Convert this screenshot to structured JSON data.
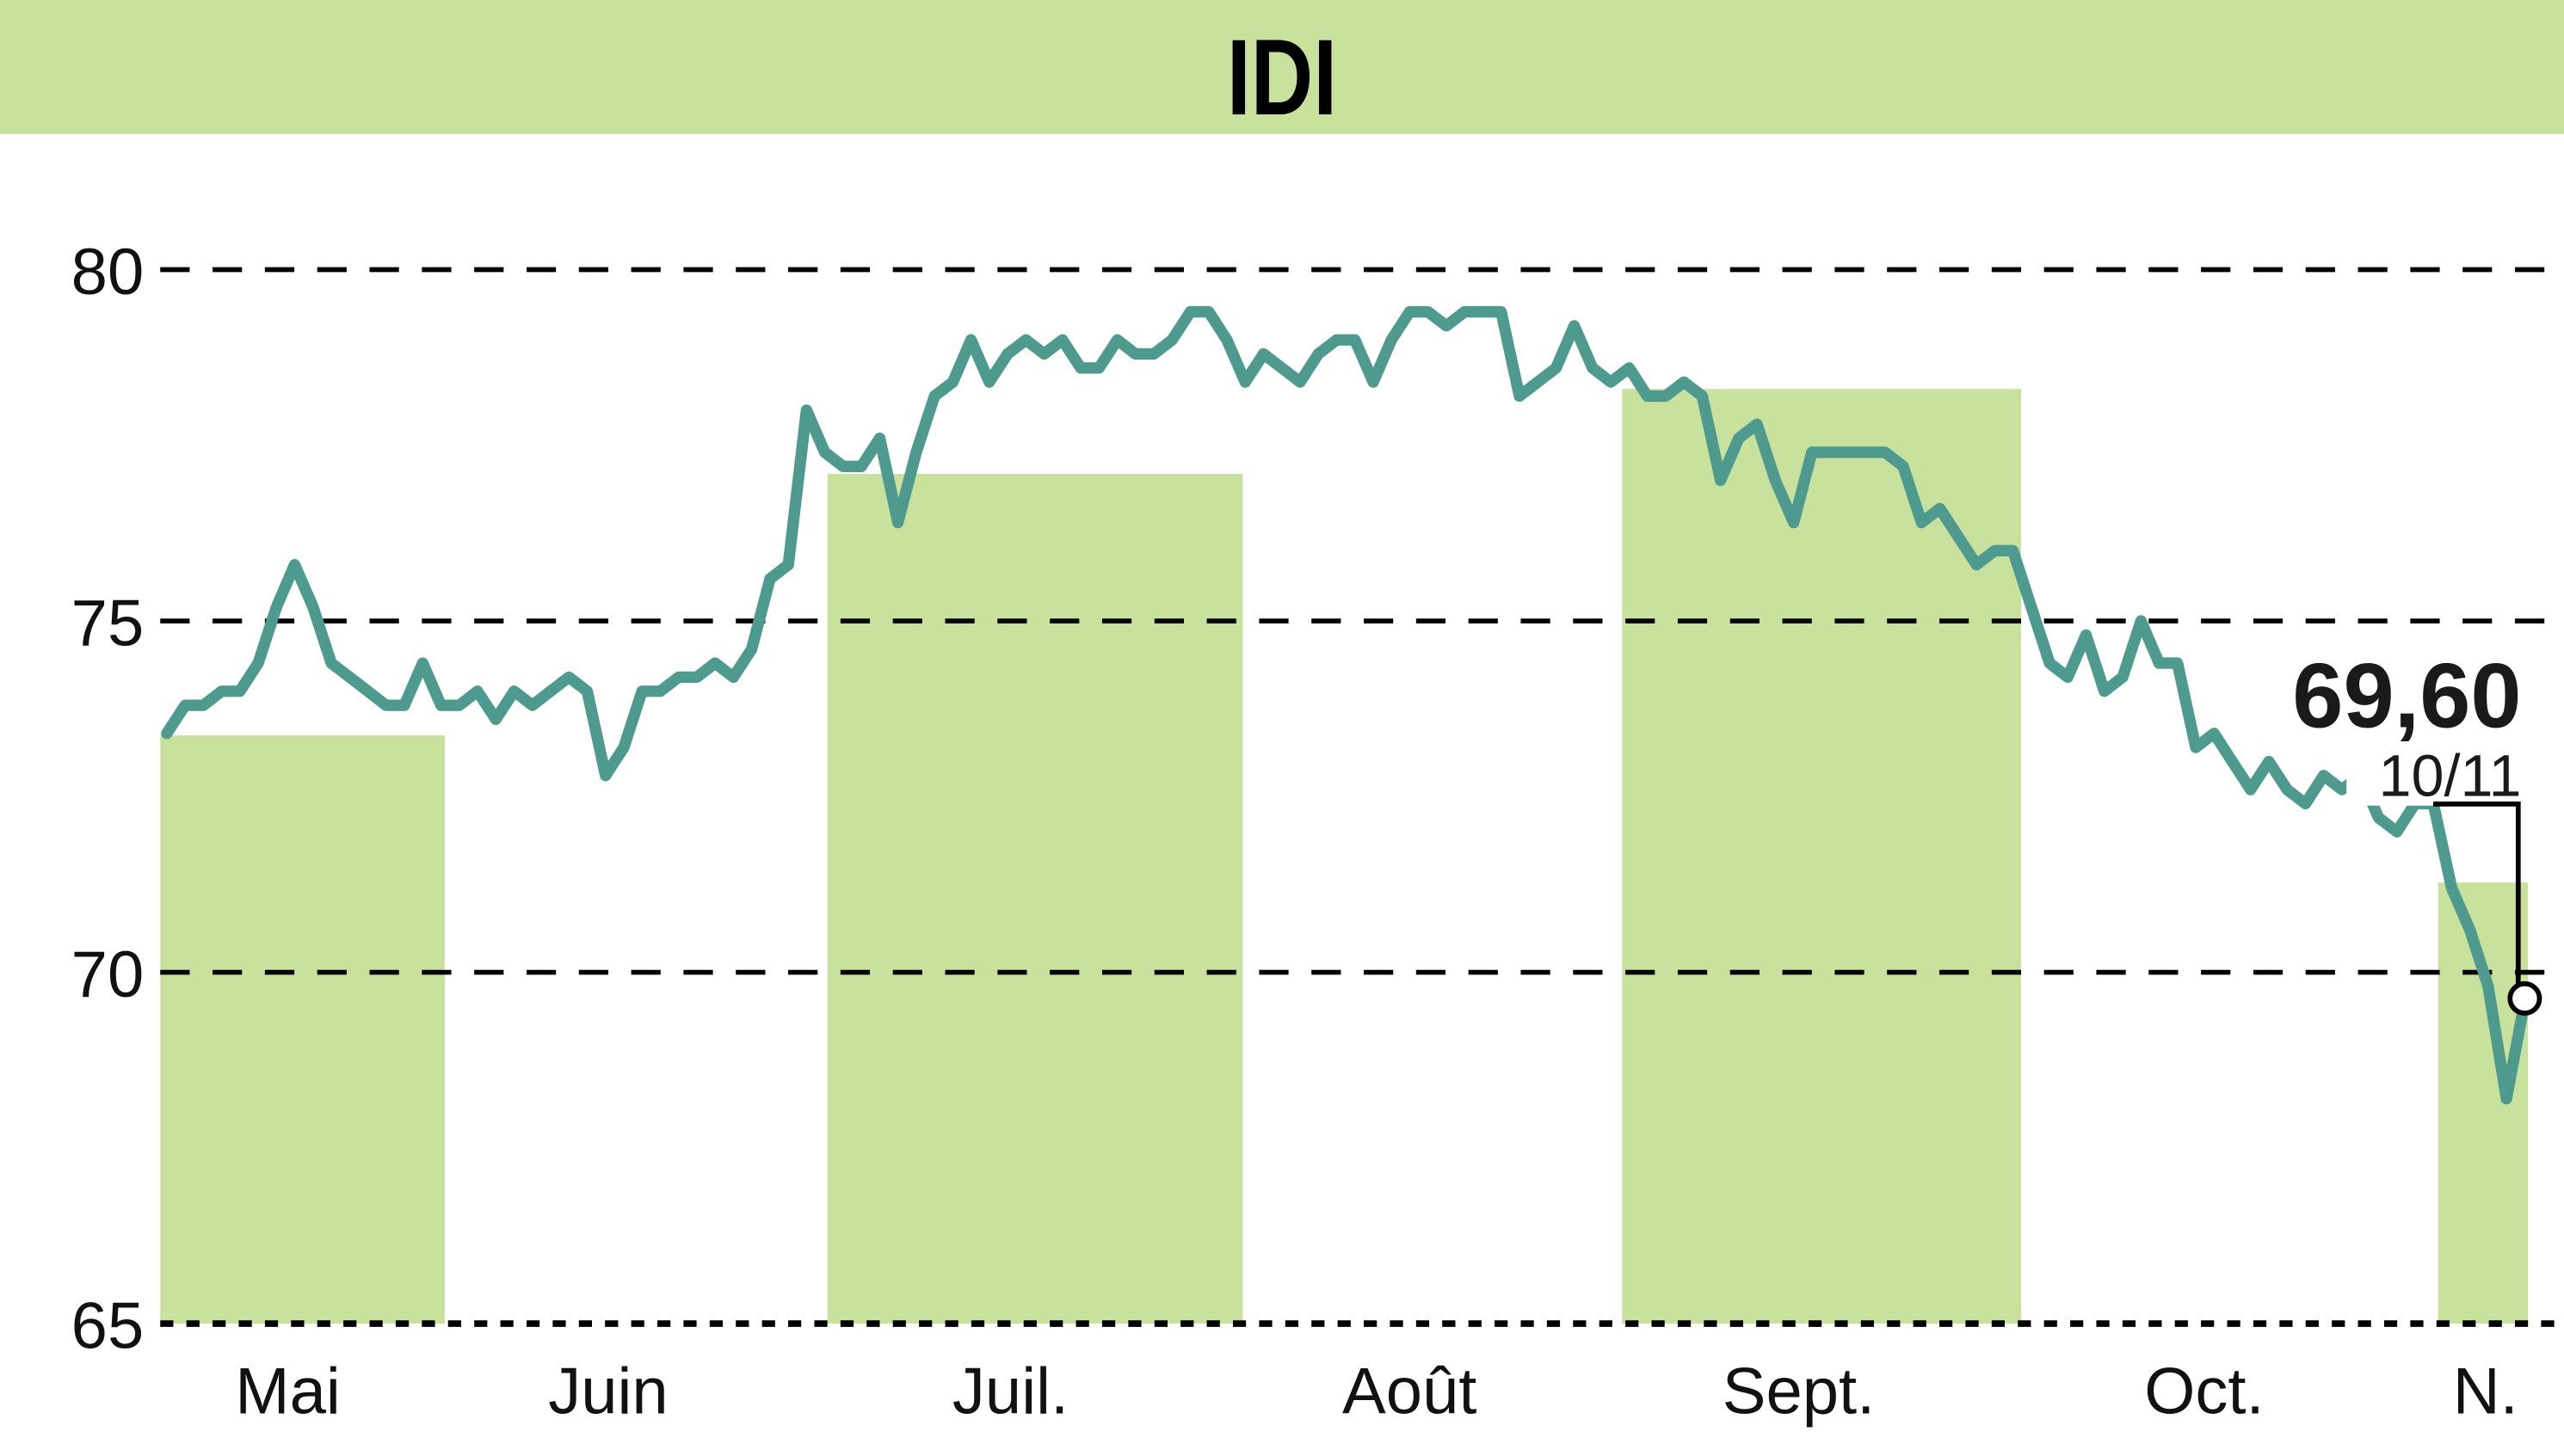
{
  "header": {
    "title": "IDI",
    "background": "#c8e29e"
  },
  "annotation": {
    "last_value": "69,60",
    "last_date": "10/11"
  },
  "colors": {
    "line": "#4e9a8f",
    "band": "#c8e29e",
    "grid": "#000000",
    "text": "#111111"
  },
  "chart_data": {
    "type": "line",
    "title": "IDI",
    "xlabel": "",
    "ylabel": "",
    "ylim": [
      65,
      80
    ],
    "yticks": [
      65,
      70,
      75,
      80
    ],
    "ytick_labels": [
      "65",
      "70",
      "75",
      "80"
    ],
    "grid": "horizontal dashed",
    "month_labels": [
      "Mai",
      "Juin",
      "Juil.",
      "Août",
      "Sept.",
      "Oct.",
      "N."
    ],
    "shaded_months": [
      "Mai",
      "Juil.",
      "Sept.",
      "N."
    ],
    "last_point": {
      "date": "10/11",
      "value": 69.6
    },
    "series": [
      {
        "name": "IDI",
        "values": [
          73.4,
          73.8,
          73.8,
          74.0,
          74.0,
          74.4,
          75.2,
          75.8,
          75.2,
          74.4,
          74.2,
          74.0,
          73.8,
          73.8,
          74.4,
          73.8,
          73.8,
          74.0,
          73.6,
          74.0,
          73.8,
          74.0,
          74.2,
          74.0,
          72.8,
          73.2,
          74.0,
          74.0,
          74.2,
          74.2,
          74.4,
          74.2,
          74.6,
          75.6,
          75.8,
          78.0,
          77.4,
          77.2,
          77.2,
          77.6,
          76.4,
          77.4,
          78.2,
          78.4,
          79.0,
          78.4,
          78.8,
          79.0,
          78.8,
          79.0,
          78.6,
          78.6,
          79.0,
          78.8,
          78.8,
          79.0,
          79.4,
          79.4,
          79.0,
          78.4,
          78.8,
          78.6,
          78.4,
          78.8,
          79.0,
          79.0,
          78.4,
          79.0,
          79.4,
          79.4,
          79.2,
          79.4,
          79.4,
          79.4,
          78.2,
          78.4,
          78.6,
          79.2,
          78.6,
          78.4,
          78.6,
          78.2,
          78.2,
          78.4,
          78.2,
          77.0,
          77.6,
          77.8,
          77.0,
          76.4,
          77.4,
          77.4,
          77.4,
          77.4,
          77.4,
          77.2,
          76.4,
          76.6,
          76.2,
          75.8,
          76.0,
          76.0,
          75.2,
          74.4,
          74.2,
          74.8,
          74.0,
          74.2,
          75.0,
          74.4,
          74.4,
          73.2,
          73.4,
          73.0,
          72.6,
          73.0,
          72.6,
          72.4,
          72.8,
          72.6,
          72.8,
          72.2,
          72.0,
          72.4,
          72.4,
          71.2,
          70.6,
          69.8,
          68.2,
          69.6
        ]
      }
    ]
  }
}
